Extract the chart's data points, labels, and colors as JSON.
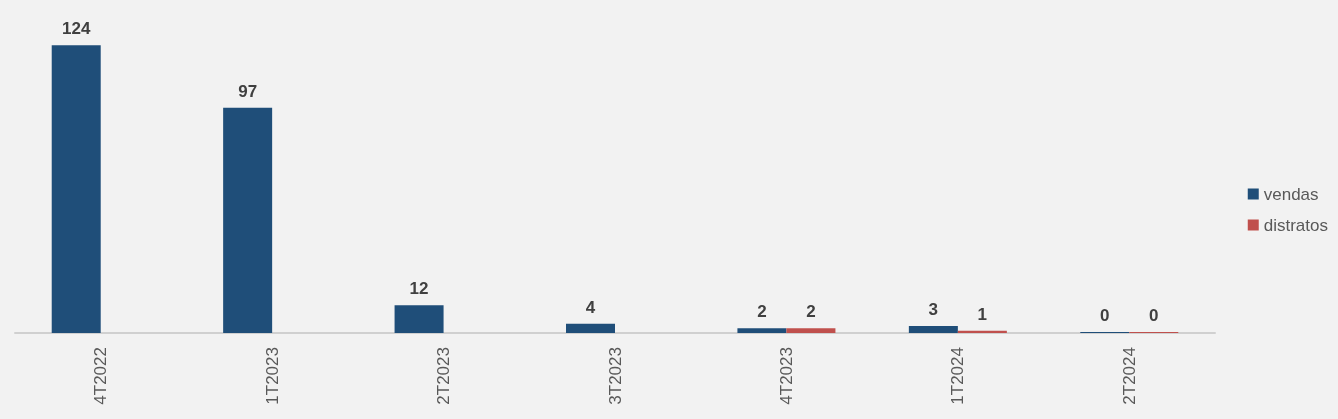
{
  "chart_data": {
    "type": "bar",
    "categories": [
      "4T2022",
      "1T2023",
      "2T2023",
      "3T2023",
      "4T2023",
      "1T2024",
      "2T2024"
    ],
    "series": [
      {
        "name": "vendas",
        "color": "#1f4e79",
        "values": [
          124,
          97,
          12,
          4,
          2,
          3,
          0
        ]
      },
      {
        "name": "distratos",
        "color": "#c0504d",
        "values": [
          null,
          null,
          null,
          null,
          2,
          1,
          0
        ]
      }
    ],
    "data_labels": true,
    "legend": "right"
  }
}
